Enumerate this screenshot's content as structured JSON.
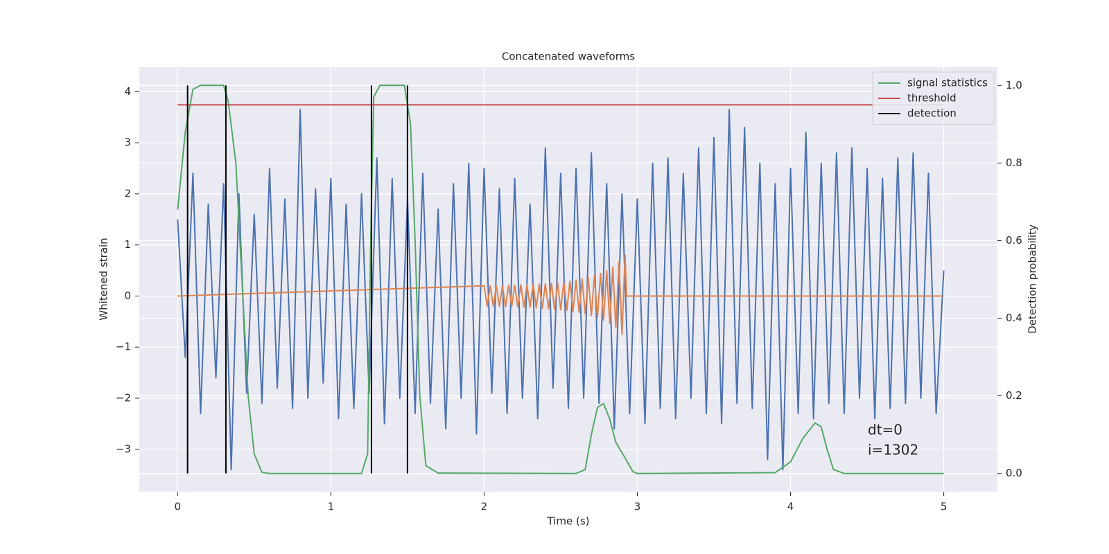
{
  "chart_data": {
    "type": "line",
    "title": "Concatenated waveforms",
    "xlabel": "Time (s)",
    "ylabel": "Whitened strain",
    "y2label": "Detection probability",
    "xlim": [
      -0.25,
      5.35
    ],
    "ylim": [
      -3.83,
      4.48
    ],
    "y2lim": [
      -0.047,
      1.047
    ],
    "xticks": [
      0,
      1,
      2,
      3,
      4,
      5
    ],
    "yticks": [
      {
        "value": -3,
        "label": "−3"
      },
      {
        "value": -2,
        "label": "−2"
      },
      {
        "value": -1,
        "label": "−1"
      },
      0,
      1,
      2,
      3,
      4
    ],
    "y2ticks": [
      {
        "value": 0,
        "label": "0.0"
      },
      {
        "value": 0.2,
        "label": "0.2"
      },
      {
        "value": 0.4,
        "label": "0.4"
      },
      {
        "value": 0.6,
        "label": "0.6"
      },
      {
        "value": 0.8,
        "label": "0.8"
      },
      {
        "value": 1,
        "label": "1.0"
      }
    ],
    "grid": true,
    "legend": "upper right",
    "annotations": [
      "dt=0",
      "i=1302"
    ],
    "series": [
      {
        "color": "#4c72b0",
        "style": "line",
        "x": [
          0,
          0.05,
          0.1,
          0.15,
          0.2,
          0.25,
          0.3,
          0.35,
          0.4,
          0.45,
          0.5,
          0.55,
          0.6,
          0.65,
          0.7,
          0.75,
          0.8,
          0.85,
          0.9,
          0.95,
          1,
          1.05,
          1.1,
          1.15,
          1.2,
          1.25,
          1.3,
          1.35,
          1.4,
          1.45,
          1.5,
          1.55,
          1.6,
          1.65,
          1.7,
          1.75,
          1.8,
          1.85,
          1.9,
          1.95,
          2,
          2.05,
          2.1,
          2.15,
          2.2,
          2.25,
          2.3,
          2.35,
          2.4,
          2.45,
          2.5,
          2.55,
          2.6,
          2.65,
          2.7,
          2.75,
          2.8,
          2.85,
          2.9,
          2.95,
          3,
          3.05,
          3.1,
          3.15,
          3.2,
          3.25,
          3.3,
          3.35,
          3.4,
          3.45,
          3.5,
          3.55,
          3.6,
          3.65,
          3.7,
          3.75,
          3.8,
          3.85,
          3.9,
          3.95,
          4,
          4.05,
          4.1,
          4.15,
          4.2,
          4.25,
          4.3,
          4.35,
          4.4,
          4.45,
          4.5,
          4.55,
          4.6,
          4.65,
          4.7,
          4.75,
          4.8,
          4.85,
          4.9,
          4.95,
          5
        ],
        "values": [
          1.5,
          -1.2,
          2.4,
          -2.3,
          1.8,
          -1.6,
          2.2,
          -3.4,
          2.0,
          -1.9,
          1.6,
          -2.1,
          2.5,
          -1.8,
          1.9,
          -2.2,
          3.65,
          -2.0,
          2.1,
          -1.7,
          2.3,
          -2.4,
          1.8,
          -2.2,
          2.0,
          -1.9,
          2.7,
          -2.5,
          2.3,
          -2.0,
          1.9,
          -2.3,
          2.4,
          -2.1,
          1.7,
          -2.6,
          2.2,
          -2.0,
          2.6,
          -2.7,
          2.5,
          -1.9,
          2.1,
          -2.3,
          2.3,
          -2.0,
          1.8,
          -2.4,
          2.9,
          -1.8,
          2.4,
          -2.2,
          2.5,
          -2.0,
          2.8,
          -2.1,
          2.2,
          -2.6,
          2.0,
          -2.3,
          1.9,
          -2.5,
          2.6,
          -2.2,
          2.7,
          -2.4,
          2.4,
          -2.0,
          2.9,
          -2.3,
          3.1,
          -2.5,
          3.65,
          -2.1,
          3.3,
          -2.2,
          2.6,
          -3.2,
          2.2,
          -3.4,
          2.5,
          -2.3,
          3.2,
          -2.4,
          2.6,
          -2.1,
          2.8,
          -2.3,
          2.9,
          -2.0,
          2.5,
          -2.4,
          2.3,
          -2.2,
          2.7,
          -2.1,
          2.8,
          -2.0,
          2.4,
          -2.3,
          0.5
        ]
      },
      {
        "color": "#dd8452",
        "style": "line",
        "x": [
          0,
          2.0,
          2.02,
          2.04,
          2.06,
          2.08,
          2.1,
          2.12,
          2.14,
          2.16,
          2.18,
          2.2,
          2.22,
          2.24,
          2.26,
          2.28,
          2.3,
          2.32,
          2.34,
          2.36,
          2.38,
          2.4,
          2.42,
          2.44,
          2.46,
          2.48,
          2.5,
          2.52,
          2.54,
          2.56,
          2.58,
          2.6,
          2.62,
          2.64,
          2.66,
          2.68,
          2.7,
          2.72,
          2.74,
          2.76,
          2.78,
          2.8,
          2.82,
          2.84,
          2.86,
          2.88,
          2.9,
          2.92,
          2.93,
          5
        ],
        "values": [
          0,
          0.2,
          -0.2,
          0.2,
          -0.2,
          0.2,
          -0.2,
          0.2,
          -0.21,
          0.21,
          -0.21,
          0.21,
          -0.21,
          0.22,
          -0.22,
          0.22,
          -0.22,
          0.23,
          -0.23,
          0.23,
          -0.24,
          0.24,
          -0.25,
          0.25,
          -0.26,
          0.26,
          -0.27,
          0.28,
          -0.28,
          0.29,
          -0.3,
          0.31,
          -0.32,
          0.33,
          -0.35,
          0.36,
          -0.38,
          0.4,
          -0.42,
          0.44,
          -0.47,
          0.5,
          -0.53,
          0.57,
          -0.62,
          0.67,
          -0.75,
          0.8,
          0,
          0
        ]
      },
      {
        "name": "signal statistics",
        "color": "#55a868",
        "style": "line",
        "axis": "y2",
        "x": [
          0,
          0.05,
          0.1,
          0.15,
          0.3,
          0.33,
          0.38,
          0.42,
          0.46,
          0.5,
          0.55,
          0.6,
          1.2,
          1.24,
          1.26,
          1.28,
          1.32,
          1.48,
          1.52,
          1.55,
          1.58,
          1.62,
          1.7,
          2.6,
          2.66,
          2.7,
          2.74,
          2.78,
          2.82,
          2.86,
          2.92,
          2.97,
          3.0,
          3.9,
          4.0,
          4.08,
          4.16,
          4.2,
          4.24,
          4.28,
          4.35,
          5.0
        ],
        "values": [
          0.68,
          0.88,
          0.99,
          1.0,
          1.0,
          0.96,
          0.8,
          0.5,
          0.2,
          0.05,
          0.003,
          0,
          0,
          0.05,
          0.6,
          0.97,
          1.0,
          1.0,
          0.9,
          0.6,
          0.2,
          0.02,
          0.001,
          0,
          0.01,
          0.1,
          0.17,
          0.18,
          0.14,
          0.08,
          0.04,
          0.005,
          0,
          0.002,
          0.03,
          0.09,
          0.13,
          0.12,
          0.06,
          0.01,
          0,
          0
        ]
      },
      {
        "name": "threshold",
        "color": "#c44e52",
        "style": "line",
        "axis": "y2",
        "x": [
          0,
          5
        ],
        "values": [
          0.95,
          0.95
        ]
      },
      {
        "name": "detection",
        "color": "#000000",
        "style": "vline",
        "axis": "y2",
        "x": [
          0.065,
          0.315,
          1.265,
          1.5
        ],
        "span": [
          0,
          1
        ]
      }
    ]
  }
}
